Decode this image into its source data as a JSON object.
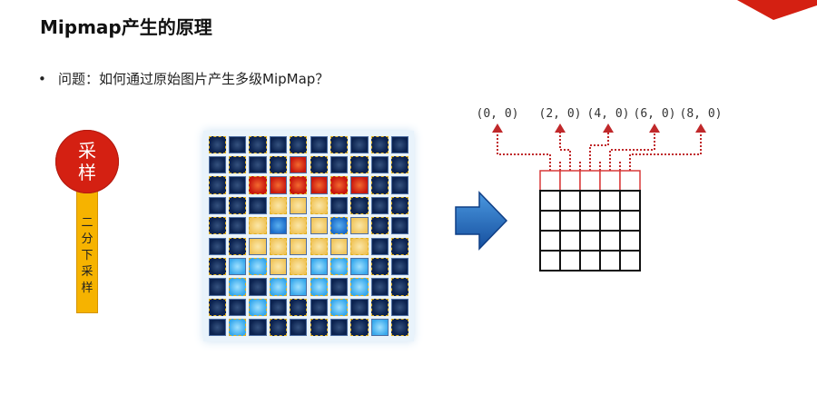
{
  "title": "Mipmap产生的原理",
  "bullet": {
    "dot": "•",
    "text": "问题：如何通过原始图片产生多级MipMap？"
  },
  "sampling_badge": {
    "circle_text": "采样",
    "bar_text": "二分下采样"
  },
  "coords": [
    "(0, 0)",
    "(2, 0)",
    "(4, 0)",
    "(6, 0)",
    "(8, 0)"
  ],
  "colors": {
    "accent_red": "#d42012",
    "badge_yellow": "#f6b300",
    "arrow_blue": "#1f6fc4",
    "dotted_red": "#c0282a",
    "dark_navy": "#0c2350"
  },
  "pixel_grid": {
    "rows": 10,
    "cols": 10,
    "cells": [
      "NNNNNNNNNN",
      "NNNNRNNNNN",
      "NNRRRRRRNN",
      "NNNYYYNNNN",
      "NNYBYYBYNN",
      "NNYYYYYYNN",
      "NLLYYLLLNN",
      "NLNLLLNLNN",
      "NNLNNNLNNN",
      "NLNNNNNNLN"
    ]
  },
  "mip_grid": {
    "rows": 5,
    "cols": 5,
    "highlight_row": 0
  }
}
